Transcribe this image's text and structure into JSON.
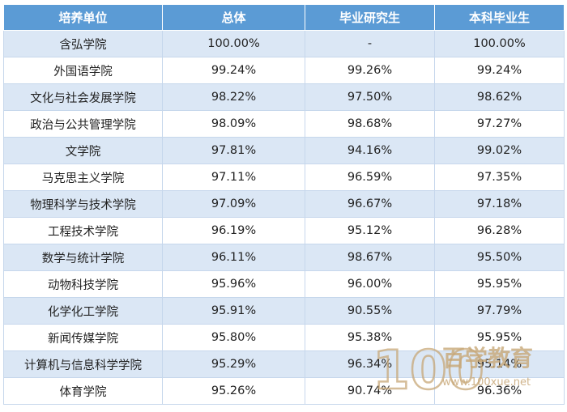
{
  "table": {
    "headers": [
      "培养单位",
      "总体",
      "毕业研究生",
      "本科毕业生"
    ],
    "rows": [
      [
        "含弘学院",
        "100.00%",
        "-",
        "100.00%"
      ],
      [
        "外国语学院",
        "99.24%",
        "99.26%",
        "99.24%"
      ],
      [
        "文化与社会发展学院",
        "98.22%",
        "97.50%",
        "98.62%"
      ],
      [
        "政治与公共管理学院",
        "98.09%",
        "98.68%",
        "97.27%"
      ],
      [
        "文学院",
        "97.81%",
        "94.16%",
        "99.02%"
      ],
      [
        "马克思主义学院",
        "97.11%",
        "96.59%",
        "97.35%"
      ],
      [
        "物理科学与技术学院",
        "97.09%",
        "96.67%",
        "97.18%"
      ],
      [
        "工程技术学院",
        "96.19%",
        "95.12%",
        "96.28%"
      ],
      [
        "数学与统计学院",
        "96.11%",
        "98.67%",
        "95.50%"
      ],
      [
        "动物科技学院",
        "95.96%",
        "96.00%",
        "95.95%"
      ],
      [
        "化学化工学院",
        "95.91%",
        "90.55%",
        "97.79%"
      ],
      [
        "新闻传媒学院",
        "95.80%",
        "95.38%",
        "95.95%"
      ],
      [
        "计算机与信息科学学院",
        "95.29%",
        "96.34%",
        "95.14%"
      ],
      [
        "体育学院",
        "95.26%",
        "90.74%",
        "96.36%"
      ]
    ]
  },
  "watermark": {
    "logo_number": "100",
    "logo_text": "百学教育",
    "url": "www.100xue.net"
  },
  "colors": {
    "header_bg": "#5b9bd5",
    "alt_row_bg": "#dbe7f5",
    "border": "#c6d7ec",
    "watermark": "#c8a878"
  }
}
